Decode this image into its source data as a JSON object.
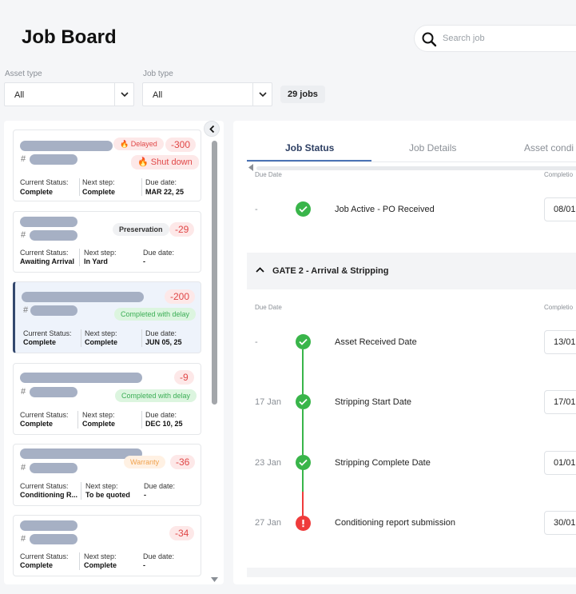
{
  "header": {
    "title": "Job Board",
    "search_placeholder": "Search job"
  },
  "filters": {
    "asset_type": {
      "label": "Asset type",
      "value": "All"
    },
    "job_type": {
      "label": "Job type",
      "value": "All"
    },
    "jobs_count": "29 jobs"
  },
  "jobs": [
    {
      "hash": "#",
      "badges": [
        "Delayed",
        "Shut down"
      ],
      "number": "-300",
      "status_label": "Current Status:",
      "status": "Complete",
      "next_label": "Next step:",
      "next": "Complete",
      "due_label": "Due date:",
      "due": "MAR 22, 25"
    },
    {
      "hash": "#",
      "badges": [
        "Preservation"
      ],
      "number": "-29",
      "status_label": "Current Status:",
      "status": "Awaiting Arrival",
      "next_label": "Next step:",
      "next": "In Yard",
      "due_label": "Due date:",
      "due": "-"
    },
    {
      "hash": "#",
      "badges": [
        "Completed with delay"
      ],
      "number": "-200",
      "status_label": "Current Status:",
      "status": "Complete",
      "next_label": "Next step:",
      "next": "Complete",
      "due_label": "Due date:",
      "due": "JUN 05, 25"
    },
    {
      "hash": "#",
      "badges": [
        "Completed with delay"
      ],
      "number": "-9",
      "status_label": "Current Status:",
      "status": "Complete",
      "next_label": "Next step:",
      "next": "Complete",
      "due_label": "Due date:",
      "due": "DEC 10, 25"
    },
    {
      "hash": "#",
      "badges": [
        "Warranty"
      ],
      "number": "-36",
      "status_label": "Current Status:",
      "status": "Conditioning R...",
      "next_label": "Next step:",
      "next": "To be quoted",
      "due_label": "Due date:",
      "due": "-"
    },
    {
      "hash": "#",
      "badges": [],
      "number": "-34",
      "status_label": "Current Status:",
      "status": "Complete",
      "next_label": "Next step:",
      "next": "Complete",
      "due_label": "Due date:",
      "due": "-"
    }
  ],
  "tabs": [
    "Job Status",
    "Job Details",
    "Asset condi"
  ],
  "timeline": {
    "col_due": "Due Date",
    "col_completion": "Completio",
    "top_row": {
      "date": "-",
      "label": "Job Active - PO Received",
      "completion": "08/01"
    },
    "gate_title": "GATE 2 - Arrival & Stripping",
    "rows": [
      {
        "date": "-",
        "label": "Asset Received Date",
        "completion": "13/01",
        "status": "ok"
      },
      {
        "date": "17 Jan",
        "label": "Stripping Start Date",
        "completion": "17/01",
        "status": "ok"
      },
      {
        "date": "23 Jan",
        "label": "Stripping Complete Date",
        "completion": "01/01",
        "status": "ok"
      },
      {
        "date": "27 Jan",
        "label": "Conditioning report submission",
        "completion": "30/01",
        "status": "error"
      }
    ]
  },
  "colors": {
    "accent": "#2d3f63",
    "success": "#39b54a",
    "danger": "#e04848"
  }
}
